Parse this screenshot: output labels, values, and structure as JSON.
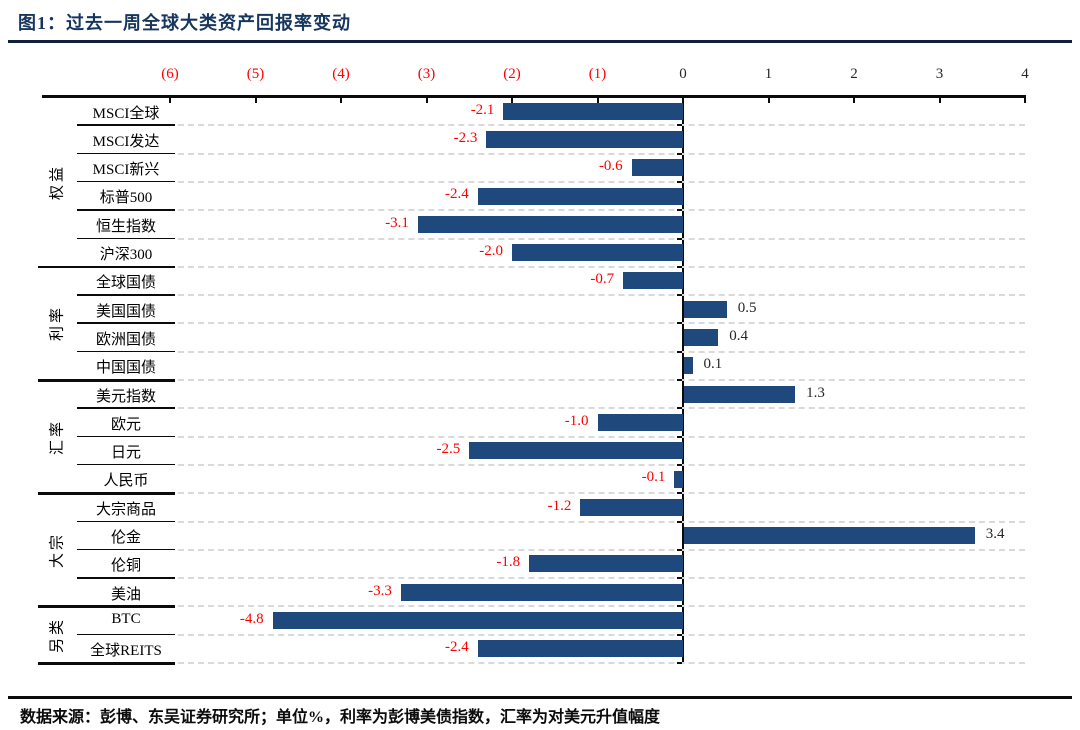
{
  "header": {
    "title": "图1：过去一周全球大类资产回报率变动"
  },
  "footer": {
    "source_note": "数据来源：彭博、东吴证券研究所；单位%，利率为彭博美债指数，汇率为对美元升值幅度"
  },
  "colors": {
    "title": "#17365D",
    "bar": "#1F497D",
    "negative_label": "#FE0000",
    "positive_label": "#262626",
    "axis_negative_tick": "#FE0000",
    "axis_positive_tick": "#262626",
    "gridline": "#d9d9d9"
  },
  "chart_data": {
    "type": "bar",
    "orientation": "horizontal",
    "title": "图1：过去一周全球大类资产回报率变动",
    "unit": "%",
    "xlim": [
      -6,
      4
    ],
    "x_ticks": [
      -6,
      -5,
      -4,
      -3,
      -2,
      -1,
      0,
      1,
      2,
      3,
      4
    ],
    "x_tick_labels": [
      "(6)",
      "(5)",
      "(4)",
      "(3)",
      "(2)",
      "(1)",
      "0",
      "1",
      "2",
      "3",
      "4"
    ],
    "grid": "dashed-horizontal-rows",
    "legend": "none",
    "groups": [
      {
        "name": "权益",
        "items": [
          {
            "label": "MSCI全球",
            "value": -2.1,
            "display": "-2.1"
          },
          {
            "label": "MSCI发达",
            "value": -2.3,
            "display": "-2.3"
          },
          {
            "label": "MSCI新兴",
            "value": -0.6,
            "display": "-0.6"
          },
          {
            "label": "标普500",
            "value": -2.4,
            "display": "-2.4"
          },
          {
            "label": "恒生指数",
            "value": -3.1,
            "display": "-3.1"
          },
          {
            "label": "沪深300",
            "value": -2.0,
            "display": "-2.0"
          }
        ]
      },
      {
        "name": "利率",
        "items": [
          {
            "label": "全球国债",
            "value": -0.7,
            "display": "-0.7"
          },
          {
            "label": "美国国债",
            "value": 0.5,
            "display": "0.5"
          },
          {
            "label": "欧洲国债",
            "value": 0.4,
            "display": "0.4"
          },
          {
            "label": "中国国债",
            "value": 0.1,
            "display": "0.1"
          }
        ]
      },
      {
        "name": "汇率",
        "items": [
          {
            "label": "美元指数",
            "value": 1.3,
            "display": "1.3"
          },
          {
            "label": "欧元",
            "value": -1.0,
            "display": "-1.0"
          },
          {
            "label": "日元",
            "value": -2.5,
            "display": "-2.5"
          },
          {
            "label": "人民币",
            "value": -0.1,
            "display": "-0.1"
          }
        ]
      },
      {
        "name": "大宗",
        "items": [
          {
            "label": "大宗商品",
            "value": -1.2,
            "display": "-1.2"
          },
          {
            "label": "伦金",
            "value": 3.4,
            "display": "3.4"
          },
          {
            "label": "伦铜",
            "value": -1.8,
            "display": "-1.8"
          },
          {
            "label": "美油",
            "value": -3.3,
            "display": "-3.3"
          }
        ]
      },
      {
        "name": "另类",
        "items": [
          {
            "label": "BTC",
            "value": -4.8,
            "display": "-4.8"
          },
          {
            "label": "全球REITS",
            "value": -2.4,
            "display": "-2.4"
          }
        ]
      }
    ]
  }
}
